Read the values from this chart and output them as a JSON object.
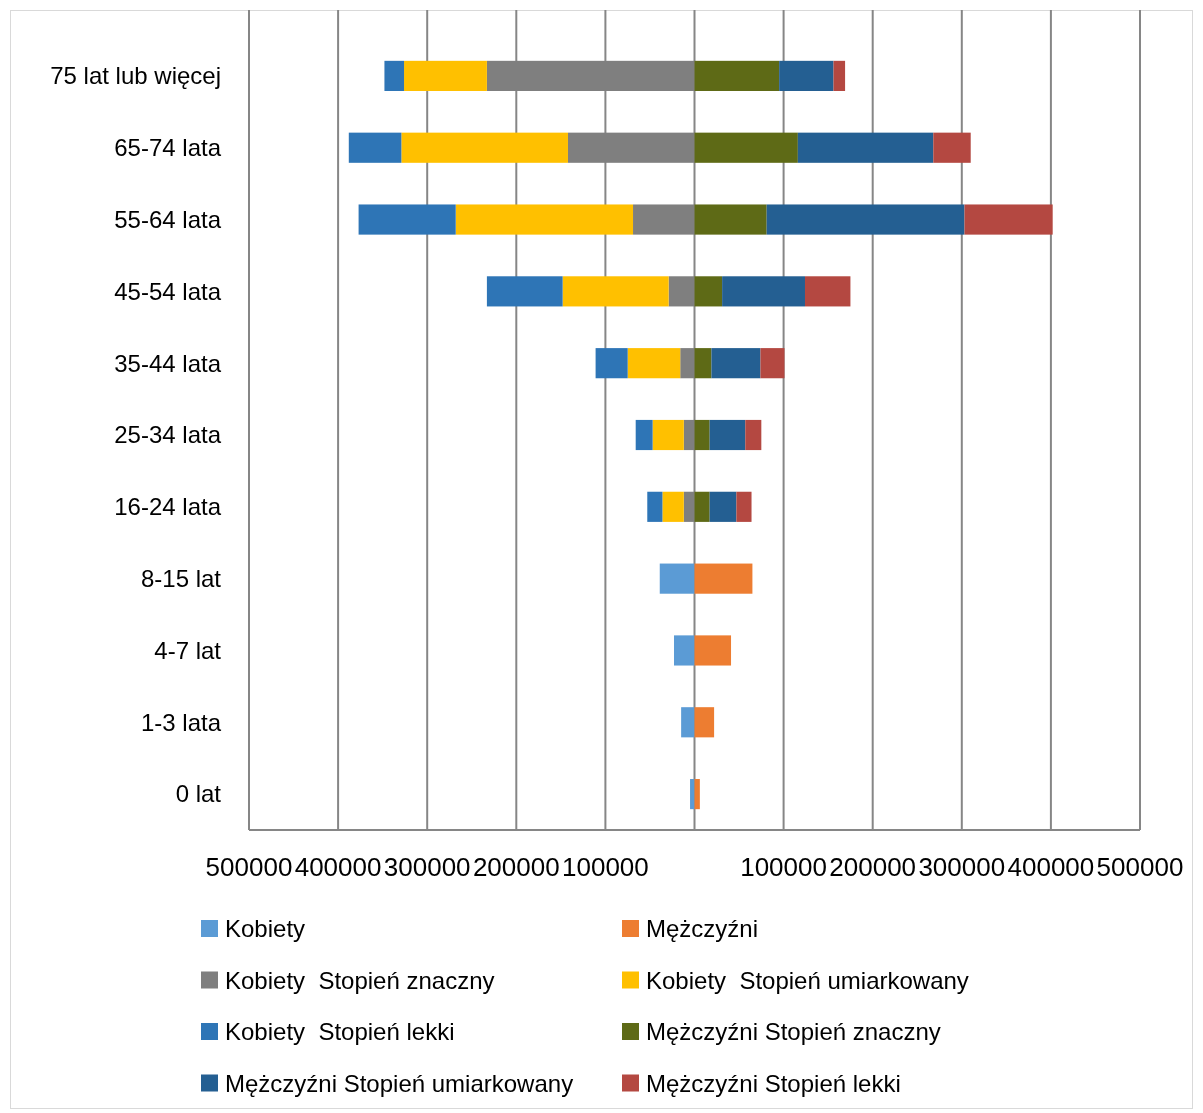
{
  "chart_data": {
    "type": "bar",
    "orientation": "horizontal",
    "stacked": true,
    "categories": [
      "75 lat lub więcej",
      "65-74 lata",
      "55-64 lata",
      "45-54 lata",
      "35-44 lata",
      "25-34 lata",
      "16-24 lata",
      "8-15 lat",
      "4-7 lat",
      "1-3 lata",
      "0 lat"
    ],
    "series": [
      {
        "name": "Kobiety",
        "color": "#5b9bd5",
        "values": [
          null,
          null,
          null,
          null,
          null,
          null,
          null,
          -39000,
          -23000,
          -15000,
          -5000
        ]
      },
      {
        "name": "Mężczyźni",
        "color": "#ed7d31",
        "values": [
          null,
          null,
          null,
          null,
          null,
          null,
          null,
          65000,
          41000,
          22000,
          6000
        ]
      },
      {
        "name": "Kobiety  Stopień znaczny",
        "color": "#7f7f7f",
        "values": [
          -233000,
          -142000,
          -69000,
          -29000,
          -16000,
          -12000,
          -12000,
          null,
          null,
          null,
          null
        ]
      },
      {
        "name": "Kobiety  Stopień umiarkowany",
        "color": "#ffc000",
        "values": [
          -93000,
          -187000,
          -199000,
          -119000,
          -59000,
          -35000,
          -24000,
          null,
          null,
          null,
          null
        ]
      },
      {
        "name": "Kobiety  Stopień lekki",
        "color": "#2e75b6",
        "values": [
          -22000,
          -59000,
          -109000,
          -85000,
          -36000,
          -19000,
          -17000,
          null,
          null,
          null,
          null
        ]
      },
      {
        "name": "Mężczyźni Stopień znaczny",
        "color": "#5e6a16",
        "values": [
          95000,
          116000,
          81000,
          31000,
          19000,
          17000,
          17000,
          null,
          null,
          null,
          null
        ]
      },
      {
        "name": "Mężczyźni Stopień umiarkowany",
        "color": "#245f92",
        "values": [
          61000,
          152000,
          222000,
          93000,
          55000,
          40000,
          30000,
          null,
          null,
          null,
          null
        ]
      },
      {
        "name": "Mężczyźni Stopień lekki",
        "color": "#b44841",
        "values": [
          13000,
          42000,
          99000,
          51000,
          27000,
          18000,
          17000,
          null,
          null,
          null,
          null
        ]
      }
    ],
    "xlim": [
      -500000,
      500000
    ],
    "xticks": [
      {
        "value": -500000,
        "label": "500000"
      },
      {
        "value": -400000,
        "label": "400000"
      },
      {
        "value": -300000,
        "label": "300000"
      },
      {
        "value": -200000,
        "label": "200000"
      },
      {
        "value": -100000,
        "label": "100000"
      },
      {
        "value": 0,
        "label": null
      },
      100000,
      200000,
      300000,
      400000,
      500000
    ],
    "grid": "x",
    "legend": "bottom"
  }
}
